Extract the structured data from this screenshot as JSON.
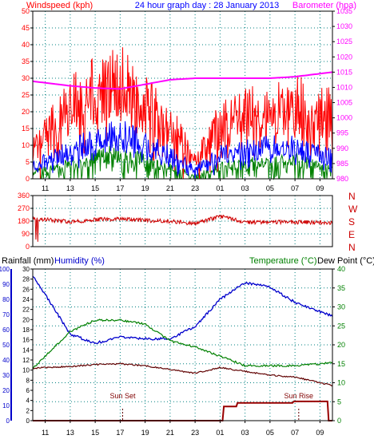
{
  "colors": {
    "wind": "#ff0000",
    "windAvg": "#0000ff",
    "windLow": "#008000",
    "baro": "#ff00ff",
    "dir": "#d00000",
    "humidity": "#0000cc",
    "temp": "#008000",
    "dew": "#600000",
    "rain": "#990000",
    "grid": "#008080",
    "frame": "#000000"
  },
  "chart_data": [
    {
      "type": "line",
      "title": "24 hour graph day : 28 January 2013",
      "ylabel": "Windspeed (kph)",
      "y2label": "Barometer (hpa)",
      "ylim": [
        0,
        50
      ],
      "y2lim": [
        980,
        1035
      ],
      "yticks": [
        "0",
        "5",
        "10",
        "15",
        "20",
        "25",
        "30",
        "35",
        "40",
        "45",
        "50"
      ],
      "y2ticks": [
        "980",
        "985",
        "990",
        "995",
        "1000",
        "1005",
        "1010",
        "1015",
        "1020",
        "1025",
        "1030",
        "1035"
      ],
      "x": [
        "11",
        "13",
        "15",
        "17",
        "19",
        "21",
        "23",
        "01",
        "03",
        "05",
        "07",
        "09"
      ],
      "series": [
        {
          "name": "gust",
          "values": [
            14,
            24,
            28,
            31,
            24,
            18,
            6,
            18,
            21,
            23,
            24,
            22
          ]
        },
        {
          "name": "average",
          "values": [
            6,
            9,
            12,
            14,
            11,
            8,
            3,
            8,
            9,
            10,
            10,
            8
          ]
        },
        {
          "name": "lull",
          "values": [
            3,
            5,
            7,
            8,
            6,
            4,
            1,
            4,
            5,
            5,
            6,
            4
          ]
        },
        {
          "name": "barometer",
          "values": [
            1011.5,
            1010.5,
            1009.8,
            1009.5,
            1011,
            1012.5,
            1013,
            1013,
            1013,
            1013,
            1013.5,
            1014.5
          ]
        }
      ]
    },
    {
      "type": "line",
      "ylim": [
        0,
        360
      ],
      "yticks": [
        "0",
        "90",
        "180",
        "270",
        "360"
      ],
      "direction_labels": [
        "N",
        "W",
        "S",
        "E",
        "N"
      ],
      "x": [
        "11",
        "13",
        "15",
        "17",
        "19",
        "21",
        "23",
        "01",
        "03",
        "05",
        "07",
        "09"
      ],
      "series": [
        {
          "name": "direction",
          "values": [
            190,
            175,
            190,
            195,
            185,
            180,
            160,
            215,
            170,
            175,
            172,
            170
          ]
        }
      ]
    },
    {
      "type": "line",
      "legend": [
        "Rainfall (mm)",
        "Humidity (%)",
        "Temperature (°C)",
        "Dew Point (°C)"
      ],
      "left_ticks_humidity": [
        "0",
        "10",
        "20",
        "30",
        "40",
        "50",
        "60",
        "70",
        "80",
        "90",
        "100"
      ],
      "left_ticks_rain": [
        "0",
        "2",
        "4",
        "6",
        "8",
        "10",
        "12",
        "14",
        "16",
        "18",
        "20",
        "22",
        "24",
        "26",
        "28",
        "30"
      ],
      "right_ticks_temp": [
        "0",
        "5",
        "10",
        "15",
        "20",
        "25",
        "30",
        "35",
        "40"
      ],
      "x": [
        "11",
        "13",
        "15",
        "17",
        "19",
        "21",
        "23",
        "01",
        "03",
        "05",
        "07",
        "09"
      ],
      "annotations": [
        "Sun Set",
        "Sun Rise"
      ],
      "series": [
        {
          "name": "humidity",
          "values": [
            83,
            57,
            51,
            55,
            54,
            54,
            62,
            80,
            91,
            88,
            78,
            72
          ]
        },
        {
          "name": "temperature",
          "values": [
            17,
            23.5,
            26.5,
            26.5,
            25.5,
            21,
            19.5,
            17,
            14.5,
            14.5,
            14.5,
            15
          ]
        },
        {
          "name": "dew_point",
          "values": [
            14,
            14.3,
            14.8,
            15,
            14.5,
            13.5,
            12.5,
            14,
            13,
            12,
            11.5,
            10
          ]
        },
        {
          "name": "rainfall",
          "values": [
            0,
            0,
            0,
            0,
            0,
            0,
            0,
            0,
            3.5,
            3.5,
            4,
            4
          ]
        }
      ]
    }
  ]
}
